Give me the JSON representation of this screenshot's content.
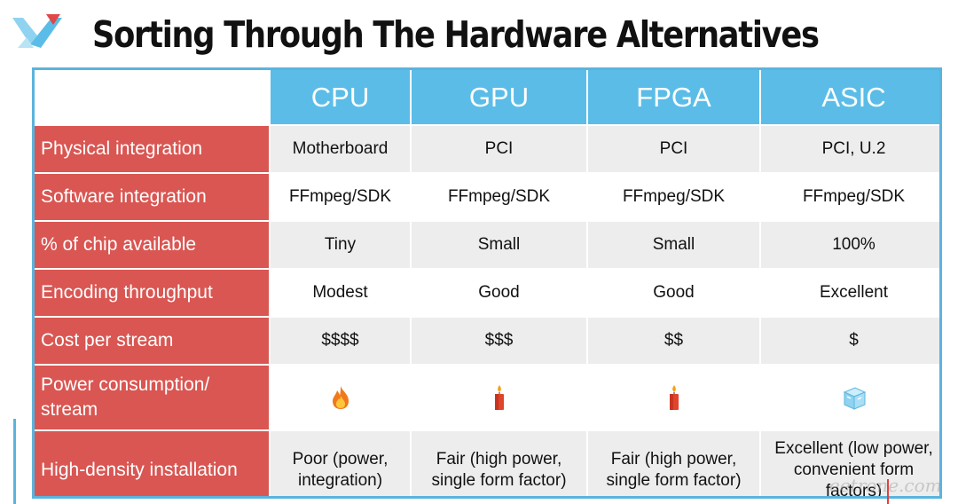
{
  "title": "Sorting Through The Hardware Alternatives",
  "columns": [
    "CPU",
    "GPU",
    "FPGA",
    "ASIC"
  ],
  "rows": [
    {
      "label": "Physical integration",
      "cells": [
        "Motherboard",
        "PCI",
        "PCI",
        "PCI, U.2"
      ]
    },
    {
      "label": "Software integration",
      "cells": [
        "FFmpeg/SDK",
        "FFmpeg/SDK",
        "FFmpeg/SDK",
        "FFmpeg/SDK"
      ]
    },
    {
      "label": "% of chip available",
      "cells": [
        "Tiny",
        "Small",
        "Small",
        "100%"
      ]
    },
    {
      "label": "Encoding throughput",
      "cells": [
        "Modest",
        "Good",
        "Good",
        "Excellent"
      ]
    },
    {
      "label": "Cost per stream",
      "cells": [
        "$$$$",
        "$$$",
        "$$",
        "$"
      ]
    },
    {
      "label": "Power consumption/ stream",
      "icons": [
        "fire-icon",
        "candle-icon",
        "candle-icon",
        "ice-cube-icon"
      ]
    },
    {
      "label": "High-density installation",
      "cells": [
        "Poor (power, integration)",
        "Fair (high power, single form factor)",
        "Fair (high power, single form factor)",
        "Excellent (low power, convenient form factors)"
      ]
    }
  ],
  "colors": {
    "header_blue": "#5bbde7",
    "label_red": "#d95652",
    "row_shade": "#ededed",
    "frame_blue": "#5ab4dd"
  },
  "watermark": "eetrone.com"
}
